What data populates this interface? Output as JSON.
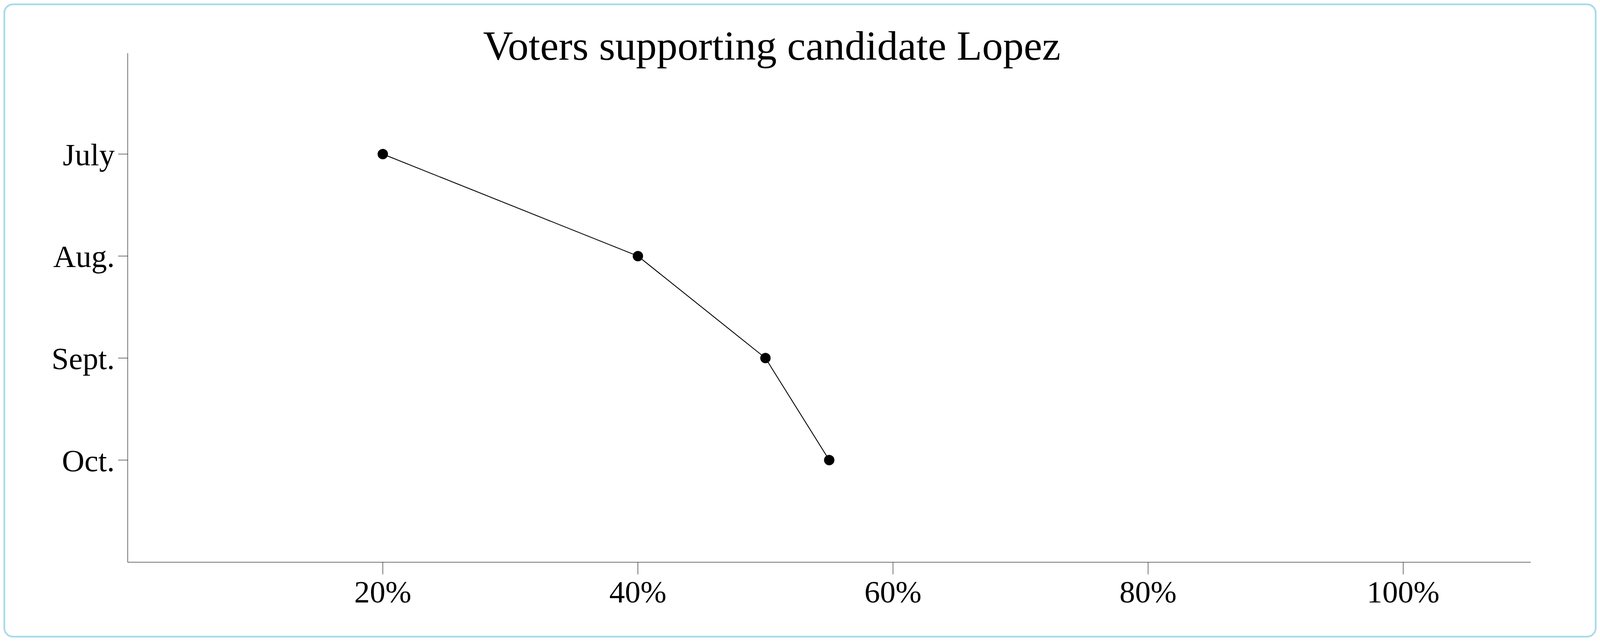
{
  "chart_data": {
    "type": "line",
    "title": "Voters supporting candidate Lopez",
    "categories": [
      "July",
      "Aug.",
      "Sept.",
      "Oct."
    ],
    "values": [
      20,
      40,
      50,
      55
    ],
    "color": "#000000",
    "orientation": "horizontal",
    "xlim": [
      0,
      110
    ],
    "xticks": [
      {
        "value": 20,
        "label": "20%"
      },
      {
        "value": 40,
        "label": "40%"
      },
      {
        "value": 60,
        "label": "60%"
      },
      {
        "value": 80,
        "label": "80%"
      },
      {
        "value": 100,
        "label": "100%"
      }
    ],
    "grid": false,
    "marker": "circle"
  }
}
